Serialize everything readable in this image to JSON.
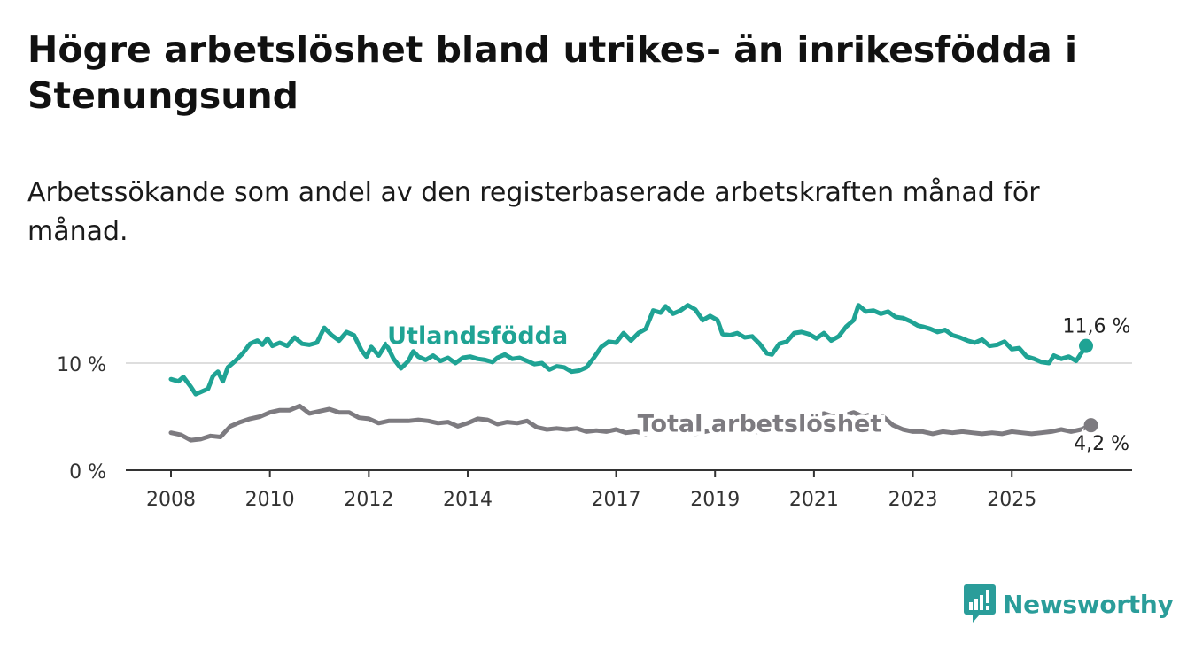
{
  "title": "Högre arbetslöshet bland utrikes- än inrikesfödda i Stenungsund",
  "subtitle": "Arbetssökande som andel av den registerbaserade arbetskraften månad för månad.",
  "brand": {
    "name": "Newsworthy",
    "color": "#2a9d9a"
  },
  "chart_data": {
    "type": "line",
    "ylim": [
      0,
      16
    ],
    "xlim": [
      2008.0,
      2026.5
    ],
    "y_ticks": [
      {
        "value": 0,
        "label": "0 %"
      },
      {
        "value": 10,
        "label": "10 %"
      }
    ],
    "x_ticks": [
      {
        "value": 2008,
        "label": "2008"
      },
      {
        "value": 2010,
        "label": "2010"
      },
      {
        "value": 2012,
        "label": "2012"
      },
      {
        "value": 2014,
        "label": "2014"
      },
      {
        "value": 2017,
        "label": "2017"
      },
      {
        "value": 2019,
        "label": "2019"
      },
      {
        "value": 2021,
        "label": "2021"
      },
      {
        "value": 2023,
        "label": "2023"
      },
      {
        "value": 2025,
        "label": "2025"
      }
    ],
    "gridlines": [
      10
    ],
    "series": [
      {
        "name": "Utlandsfödda",
        "color": "#1fa394",
        "end_label": "11,6 %",
        "points": [
          [
            2008.0,
            8.5
          ],
          [
            2008.15,
            8.3
          ],
          [
            2008.25,
            8.7
          ],
          [
            2008.4,
            7.8
          ],
          [
            2008.5,
            7.1
          ],
          [
            2008.6,
            7.3
          ],
          [
            2008.75,
            7.6
          ],
          [
            2008.85,
            8.8
          ],
          [
            2008.95,
            9.2
          ],
          [
            2009.05,
            8.3
          ],
          [
            2009.15,
            9.6
          ],
          [
            2009.3,
            10.2
          ],
          [
            2009.45,
            10.9
          ],
          [
            2009.6,
            11.8
          ],
          [
            2009.75,
            12.1
          ],
          [
            2009.85,
            11.7
          ],
          [
            2009.95,
            12.3
          ],
          [
            2010.05,
            11.6
          ],
          [
            2010.2,
            11.9
          ],
          [
            2010.35,
            11.6
          ],
          [
            2010.5,
            12.4
          ],
          [
            2010.65,
            11.8
          ],
          [
            2010.8,
            11.7
          ],
          [
            2010.95,
            11.9
          ],
          [
            2011.1,
            13.3
          ],
          [
            2011.25,
            12.6
          ],
          [
            2011.4,
            12.1
          ],
          [
            2011.55,
            12.9
          ],
          [
            2011.7,
            12.6
          ],
          [
            2011.85,
            11.2
          ],
          [
            2011.95,
            10.6
          ],
          [
            2012.05,
            11.5
          ],
          [
            2012.2,
            10.7
          ],
          [
            2012.35,
            11.8
          ],
          [
            2012.5,
            10.4
          ],
          [
            2012.65,
            9.5
          ],
          [
            2012.8,
            10.2
          ],
          [
            2012.9,
            11.1
          ],
          [
            2013.0,
            10.6
          ],
          [
            2013.15,
            10.3
          ],
          [
            2013.3,
            10.7
          ],
          [
            2013.45,
            10.2
          ],
          [
            2013.6,
            10.5
          ],
          [
            2013.75,
            10.0
          ],
          [
            2013.9,
            10.5
          ],
          [
            2014.05,
            10.6
          ],
          [
            2014.2,
            10.4
          ],
          [
            2014.35,
            10.3
          ],
          [
            2014.5,
            10.1
          ],
          [
            2014.6,
            10.5
          ],
          [
            2014.75,
            10.8
          ],
          [
            2014.9,
            10.4
          ],
          [
            2015.05,
            10.5
          ],
          [
            2015.2,
            10.2
          ],
          [
            2015.35,
            9.9
          ],
          [
            2015.5,
            10.0
          ],
          [
            2015.65,
            9.4
          ],
          [
            2015.8,
            9.7
          ],
          [
            2015.95,
            9.6
          ],
          [
            2016.1,
            9.2
          ],
          [
            2016.25,
            9.3
          ],
          [
            2016.4,
            9.6
          ],
          [
            2016.55,
            10.5
          ],
          [
            2016.7,
            11.5
          ],
          [
            2016.85,
            12.0
          ],
          [
            2017.0,
            11.9
          ],
          [
            2017.15,
            12.8
          ],
          [
            2017.3,
            12.1
          ],
          [
            2017.45,
            12.8
          ],
          [
            2017.6,
            13.2
          ],
          [
            2017.75,
            14.9
          ],
          [
            2017.9,
            14.7
          ],
          [
            2018.0,
            15.3
          ],
          [
            2018.15,
            14.6
          ],
          [
            2018.3,
            14.9
          ],
          [
            2018.45,
            15.4
          ],
          [
            2018.6,
            15.0
          ],
          [
            2018.75,
            14.0
          ],
          [
            2018.9,
            14.4
          ],
          [
            2019.05,
            14.0
          ],
          [
            2019.15,
            12.7
          ],
          [
            2019.3,
            12.6
          ],
          [
            2019.45,
            12.8
          ],
          [
            2019.6,
            12.4
          ],
          [
            2019.75,
            12.5
          ],
          [
            2019.9,
            11.8
          ],
          [
            2020.05,
            10.9
          ],
          [
            2020.15,
            10.8
          ],
          [
            2020.3,
            11.8
          ],
          [
            2020.45,
            12.0
          ],
          [
            2020.6,
            12.8
          ],
          [
            2020.75,
            12.9
          ],
          [
            2020.9,
            12.7
          ],
          [
            2021.05,
            12.3
          ],
          [
            2021.2,
            12.8
          ],
          [
            2021.35,
            12.1
          ],
          [
            2021.5,
            12.5
          ],
          [
            2021.65,
            13.4
          ],
          [
            2021.8,
            14.0
          ],
          [
            2021.9,
            15.4
          ],
          [
            2022.05,
            14.8
          ],
          [
            2022.2,
            14.9
          ],
          [
            2022.35,
            14.6
          ],
          [
            2022.5,
            14.8
          ],
          [
            2022.65,
            14.3
          ],
          [
            2022.8,
            14.2
          ],
          [
            2022.95,
            13.9
          ],
          [
            2023.1,
            13.5
          ],
          [
            2023.2,
            13.4
          ],
          [
            2023.35,
            13.2
          ],
          [
            2023.5,
            12.9
          ],
          [
            2023.65,
            13.1
          ],
          [
            2023.8,
            12.6
          ],
          [
            2023.95,
            12.4
          ],
          [
            2024.1,
            12.1
          ],
          [
            2024.25,
            11.9
          ],
          [
            2024.4,
            12.2
          ],
          [
            2024.55,
            11.6
          ],
          [
            2024.7,
            11.7
          ],
          [
            2024.85,
            12.0
          ],
          [
            2025.0,
            11.3
          ],
          [
            2025.15,
            11.4
          ],
          [
            2025.3,
            10.6
          ],
          [
            2025.45,
            10.4
          ],
          [
            2025.6,
            10.1
          ],
          [
            2025.75,
            10.0
          ],
          [
            2025.85,
            10.7
          ],
          [
            2026.0,
            10.4
          ],
          [
            2026.15,
            10.6
          ],
          [
            2026.3,
            10.2
          ],
          [
            2026.5,
            11.6
          ]
        ]
      },
      {
        "name": "Total arbetslöshet",
        "color": "#7d7b80",
        "end_label": "4,2 %",
        "points": [
          [
            2008.0,
            3.5
          ],
          [
            2008.2,
            3.3
          ],
          [
            2008.4,
            2.8
          ],
          [
            2008.6,
            2.9
          ],
          [
            2008.8,
            3.2
          ],
          [
            2009.0,
            3.1
          ],
          [
            2009.2,
            4.1
          ],
          [
            2009.4,
            4.5
          ],
          [
            2009.6,
            4.8
          ],
          [
            2009.8,
            5.0
          ],
          [
            2010.0,
            5.4
          ],
          [
            2010.2,
            5.6
          ],
          [
            2010.4,
            5.6
          ],
          [
            2010.6,
            6.0
          ],
          [
            2010.8,
            5.3
          ],
          [
            2011.0,
            5.5
          ],
          [
            2011.2,
            5.7
          ],
          [
            2011.4,
            5.4
          ],
          [
            2011.6,
            5.4
          ],
          [
            2011.8,
            4.9
          ],
          [
            2012.0,
            4.8
          ],
          [
            2012.2,
            4.4
          ],
          [
            2012.4,
            4.6
          ],
          [
            2012.6,
            4.6
          ],
          [
            2012.8,
            4.6
          ],
          [
            2013.0,
            4.7
          ],
          [
            2013.2,
            4.6
          ],
          [
            2013.4,
            4.4
          ],
          [
            2013.6,
            4.5
          ],
          [
            2013.8,
            4.1
          ],
          [
            2014.0,
            4.4
          ],
          [
            2014.2,
            4.8
          ],
          [
            2014.4,
            4.7
          ],
          [
            2014.6,
            4.3
          ],
          [
            2014.8,
            4.5
          ],
          [
            2015.0,
            4.4
          ],
          [
            2015.2,
            4.6
          ],
          [
            2015.4,
            4.0
          ],
          [
            2015.6,
            3.8
          ],
          [
            2015.8,
            3.9
          ],
          [
            2016.0,
            3.8
          ],
          [
            2016.2,
            3.9
          ],
          [
            2016.4,
            3.6
          ],
          [
            2016.6,
            3.7
          ],
          [
            2016.8,
            3.6
          ],
          [
            2017.0,
            3.8
          ],
          [
            2017.2,
            3.5
          ],
          [
            2017.4,
            3.6
          ],
          [
            2017.6,
            3.4
          ],
          [
            2017.8,
            3.8
          ],
          [
            2018.0,
            3.7
          ],
          [
            2018.2,
            3.9
          ],
          [
            2018.4,
            3.6
          ],
          [
            2018.6,
            3.4
          ],
          [
            2018.8,
            3.6
          ],
          [
            2019.0,
            3.8
          ],
          [
            2019.2,
            3.6
          ],
          [
            2019.4,
            3.5
          ],
          [
            2019.6,
            3.7
          ],
          [
            2019.8,
            3.6
          ],
          [
            2020.0,
            3.5
          ],
          [
            2020.2,
            3.8
          ],
          [
            2020.4,
            4.0
          ],
          [
            2020.6,
            4.6
          ],
          [
            2020.8,
            4.9
          ],
          [
            2021.0,
            5.1
          ],
          [
            2021.2,
            5.3
          ],
          [
            2021.4,
            5.0
          ],
          [
            2021.6,
            5.1
          ],
          [
            2021.8,
            5.4
          ],
          [
            2022.0,
            5.0
          ],
          [
            2022.2,
            5.3
          ],
          [
            2022.4,
            5.0
          ],
          [
            2022.6,
            4.2
          ],
          [
            2022.8,
            3.8
          ],
          [
            2023.0,
            3.6
          ],
          [
            2023.2,
            3.6
          ],
          [
            2023.4,
            3.4
          ],
          [
            2023.6,
            3.6
          ],
          [
            2023.8,
            3.5
          ],
          [
            2024.0,
            3.6
          ],
          [
            2024.2,
            3.5
          ],
          [
            2024.4,
            3.4
          ],
          [
            2024.6,
            3.5
          ],
          [
            2024.8,
            3.4
          ],
          [
            2025.0,
            3.6
          ],
          [
            2025.2,
            3.5
          ],
          [
            2025.4,
            3.4
          ],
          [
            2025.6,
            3.5
          ],
          [
            2025.8,
            3.6
          ],
          [
            2026.0,
            3.8
          ],
          [
            2026.2,
            3.6
          ],
          [
            2026.4,
            3.8
          ],
          [
            2026.6,
            4.2
          ]
        ]
      }
    ],
    "series_labels": [
      {
        "series": "Utlandsfödda",
        "x": 2014.2,
        "y": 11.8
      },
      {
        "series": "Total arbetslöshet",
        "x": 2019.9,
        "y": 3.6
      }
    ]
  }
}
